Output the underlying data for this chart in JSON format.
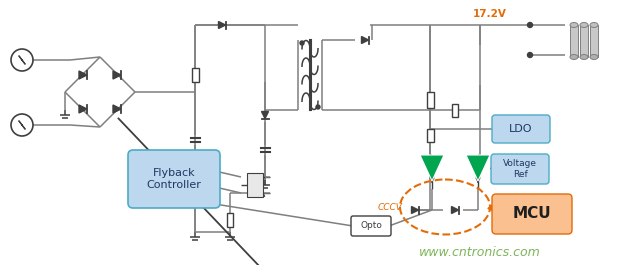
{
  "bg_color": "#ffffff",
  "line_color": "#7f7f7f",
  "dark_line": "#3f3f3f",
  "green_fill": "#00a550",
  "blue_fill": "#bdd7ee",
  "blue_border": "#4bacc6",
  "orange_fill": "#fac090",
  "orange_border": "#e36c09",
  "orange_dashed": "#e36c09",
  "watermark_color": "#70ad47",
  "watermark_text": "www.cntronics.com",
  "voltage_label": "17.2V",
  "cccv_label": "CCCV",
  "opto_label": "Opto",
  "flyback_label": "Flyback\nController",
  "mcu_label": "MCU",
  "ldo_label": "LDO",
  "voltage_ref_label": "Voltage\nRef",
  "small_dot_color": "#3f3f3f",
  "battery_colors": [
    "#b8b8b8",
    "#c8c8c8",
    "#d8d8d8"
  ]
}
